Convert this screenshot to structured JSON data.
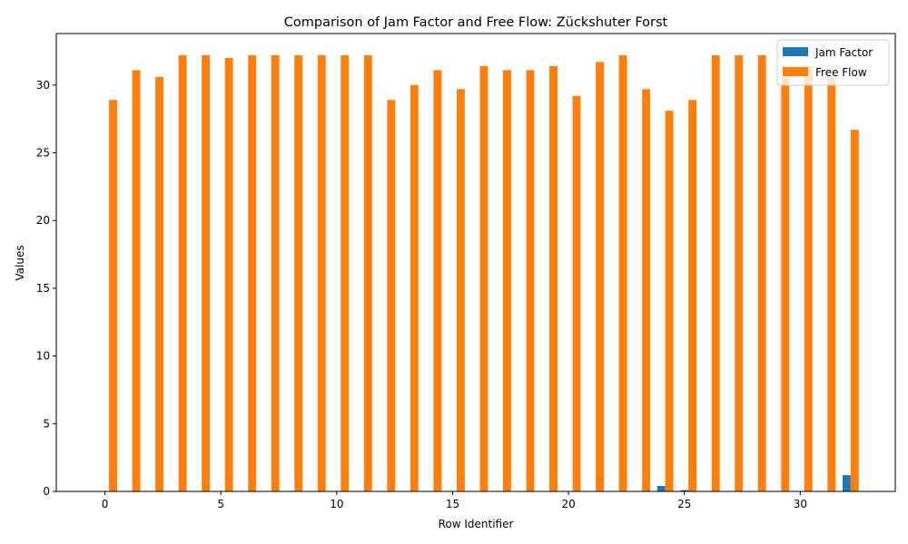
{
  "chart_data": {
    "type": "bar",
    "title": "Comparison of Jam Factor and Free Flow: Zückshuter Forst",
    "xlabel": "Row Identifier",
    "ylabel": "Values",
    "x": [
      0,
      1,
      2,
      3,
      4,
      5,
      6,
      7,
      8,
      9,
      10,
      11,
      12,
      13,
      14,
      15,
      16,
      17,
      18,
      19,
      20,
      21,
      22,
      23,
      24,
      25,
      26,
      27,
      28,
      29,
      30,
      31,
      32
    ],
    "series": [
      {
        "name": "Jam Factor",
        "color": "#1f77b4",
        "values": [
          0,
          0,
          0,
          0,
          0,
          0,
          0,
          0,
          0,
          0,
          0,
          0,
          0,
          0,
          0,
          0,
          0,
          0,
          0,
          0,
          0,
          0,
          0,
          0,
          0.4,
          0.1,
          0,
          0,
          0,
          0,
          0,
          0,
          1.2
        ]
      },
      {
        "name": "Free Flow",
        "color": "#ff7f0e",
        "values": [
          28.9,
          31.1,
          30.6,
          32.2,
          32.2,
          32.0,
          32.2,
          32.2,
          32.2,
          32.2,
          32.2,
          32.2,
          28.9,
          30.0,
          31.1,
          29.7,
          31.4,
          31.1,
          31.1,
          31.4,
          29.2,
          31.7,
          32.2,
          29.7,
          28.1,
          28.9,
          32.2,
          32.2,
          32.2,
          30.6,
          31.4,
          30.6,
          26.7
        ]
      }
    ],
    "xlim": [
      -2.1,
      34.1
    ],
    "ylim": [
      0,
      33.8
    ],
    "xticks": [
      0,
      5,
      10,
      15,
      20,
      25,
      30
    ],
    "yticks": [
      0,
      5,
      10,
      15,
      20,
      25,
      30
    ],
    "legend_position": "top-right",
    "grid": false
  }
}
